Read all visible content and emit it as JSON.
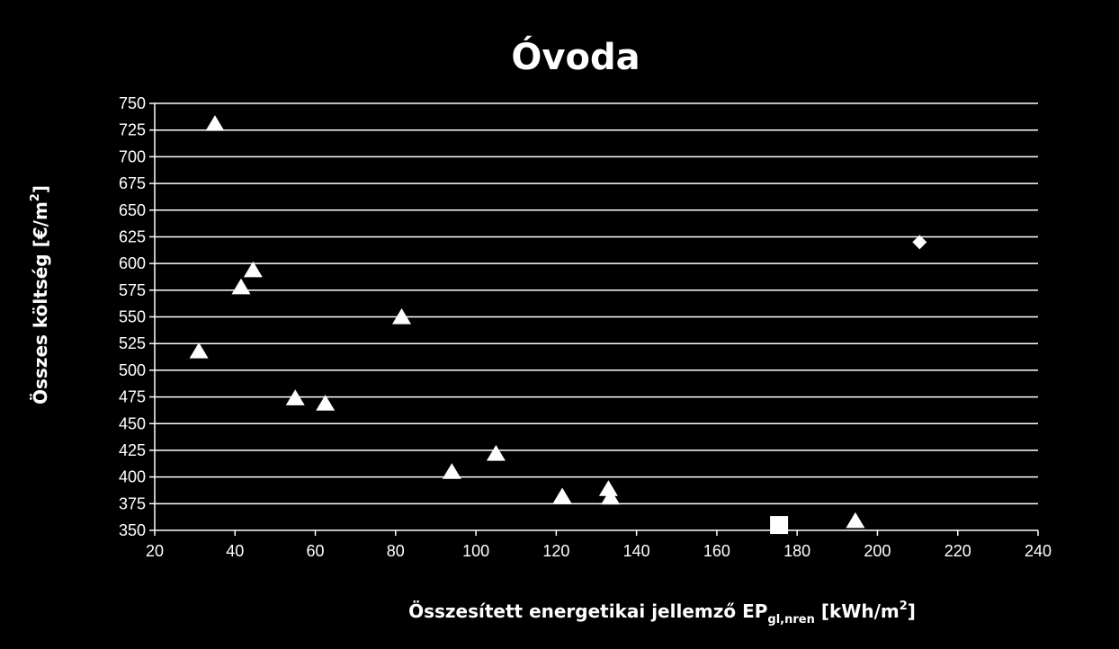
{
  "chart_data": {
    "type": "scatter",
    "title": "Óvoda",
    "xlabel": {
      "main": "Összesített energetikai jellemző EP",
      "subscript": "gl,nren",
      "unit_open": " [kWh/m",
      "unit_sup": "2",
      "unit_close": "]"
    },
    "ylabel": {
      "main": "Összes költség [€/m",
      "sup": "2",
      "close": "]"
    },
    "xlim": [
      20,
      240
    ],
    "ylim": [
      350,
      750
    ],
    "x_ticks": [
      20,
      40,
      60,
      80,
      100,
      120,
      140,
      160,
      180,
      200,
      220,
      240
    ],
    "y_ticks": [
      350,
      375,
      400,
      425,
      450,
      475,
      500,
      525,
      550,
      575,
      600,
      625,
      650,
      675,
      700,
      725,
      750
    ],
    "grid": "horizontal",
    "legend": "none",
    "colors": {
      "background": "#000000",
      "marker": "#ffffff",
      "grid": "#ffffff"
    },
    "series": [
      {
        "marker": "triangle",
        "points": [
          [
            35,
            731
          ],
          [
            31,
            518
          ],
          [
            41.5,
            578
          ],
          [
            44.5,
            594
          ],
          [
            55,
            474
          ],
          [
            62.5,
            469
          ],
          [
            81.5,
            550
          ],
          [
            94,
            405
          ],
          [
            105,
            422
          ],
          [
            121.5,
            382
          ],
          [
            133,
            389
          ],
          [
            133.5,
            381
          ],
          [
            194.5,
            359
          ]
        ]
      },
      {
        "marker": "square",
        "points": [
          [
            175.5,
            355
          ]
        ]
      },
      {
        "marker": "diamond",
        "points": [
          [
            210.5,
            620
          ]
        ]
      }
    ]
  }
}
